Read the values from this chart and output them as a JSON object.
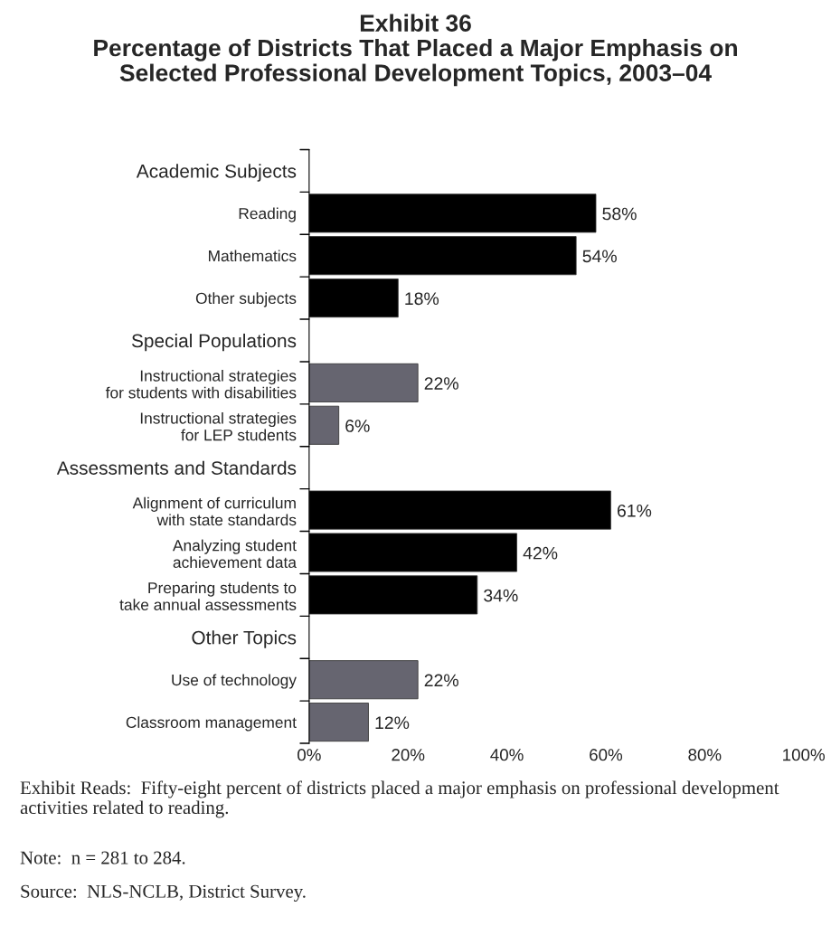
{
  "chart_data": {
    "type": "bar",
    "orientation": "horizontal",
    "title": "Exhibit 36\nPercentage of Districts That Placed a Major Emphasis on\nSelected Professional Development Topics, 2003–04",
    "categories": [
      "Academic Subjects",
      "Reading",
      "Mathematics",
      "Other subjects",
      "Special Populations",
      "Instructional strategies\nfor students with disabilities",
      "Instructional strategies\nfor LEP students",
      "Assessments and Standards",
      "Alignment of curriculum\nwith state standards",
      "Analyzing student\nachievement data",
      "Preparing students to\ntake annual assessments",
      "Other Topics",
      "Use of technology",
      "Classroom management"
    ],
    "values": [
      null,
      58,
      54,
      18,
      null,
      22,
      6,
      null,
      61,
      42,
      34,
      null,
      22,
      12
    ],
    "colors": [
      "#000000",
      "#000000",
      "#000000",
      "#000000",
      "#666570",
      "#666570",
      "#666570",
      "#000000",
      "#000000",
      "#000000",
      "#000000",
      "#666570",
      "#666570",
      "#666570"
    ],
    "value_labels": [
      null,
      "58%",
      "54%",
      "18%",
      null,
      "22%",
      "6%",
      null,
      "61%",
      "42%",
      "34%",
      null,
      "22%",
      "12%"
    ],
    "xlim": [
      0,
      100
    ],
    "xticks": [
      {
        "value": 0,
        "label": "0%"
      },
      {
        "value": 20,
        "label": "20%"
      },
      {
        "value": 40,
        "label": "40%"
      },
      {
        "value": 60,
        "label": "60%"
      },
      {
        "value": 80,
        "label": "80%"
      },
      {
        "value": 100,
        "label": "100%"
      }
    ],
    "grid": false,
    "legend": false,
    "annotations": [
      "Exhibit Reads:  Fifty-eight percent of districts placed a major emphasis on professional development activities related to reading.",
      "Note:  n = 281 to 284.",
      "Source:  NLS-NCLB, District Survey."
    ]
  }
}
